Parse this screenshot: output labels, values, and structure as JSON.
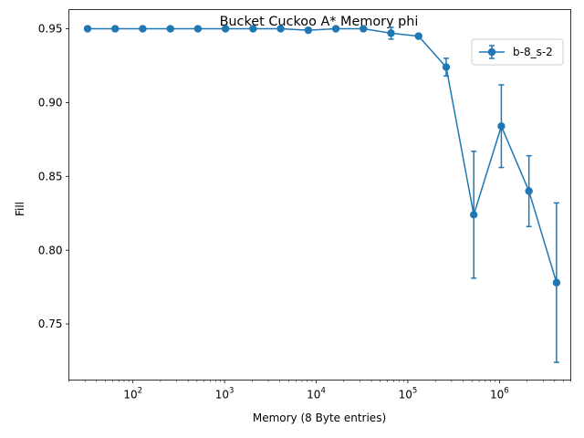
{
  "chart_data": {
    "type": "line",
    "title": "Bucket Cuckoo A* Memory phi",
    "xlabel": "Memory (8 Byte entries)",
    "ylabel": "Fill",
    "xscale": "log",
    "xlim": [
      20,
      6000000
    ],
    "ylim": [
      0.712,
      0.963
    ],
    "x_tick_values": [
      100,
      1000,
      10000,
      100000,
      1000000
    ],
    "x_tick_labels": [
      {
        "base": "10",
        "exp": "2"
      },
      {
        "base": "10",
        "exp": "3"
      },
      {
        "base": "10",
        "exp": "4"
      },
      {
        "base": "10",
        "exp": "5"
      },
      {
        "base": "10",
        "exp": "6"
      }
    ],
    "y_ticks": [
      "0.75",
      "0.80",
      "0.85",
      "0.90",
      "0.95"
    ],
    "legend_position": "upper right",
    "grid": false,
    "series": [
      {
        "name": "b-8_s-2",
        "color": "#1f77b4",
        "x": [
          32,
          64,
          128,
          256,
          512,
          1024,
          2048,
          4096,
          8192,
          16384,
          32768,
          65536,
          131072,
          262144,
          524288,
          1048576,
          2097152,
          4194304
        ],
        "y": [
          0.95,
          0.95,
          0.95,
          0.95,
          0.95,
          0.95,
          0.95,
          0.95,
          0.949,
          0.95,
          0.95,
          0.947,
          0.945,
          0.924,
          0.824,
          0.884,
          0.84,
          0.778
        ],
        "err": [
          0,
          0,
          0,
          0,
          0,
          0,
          0,
          0,
          0,
          0,
          0,
          0.004,
          0,
          0.006,
          0.043,
          0.028,
          0.024,
          0.054
        ]
      }
    ]
  }
}
